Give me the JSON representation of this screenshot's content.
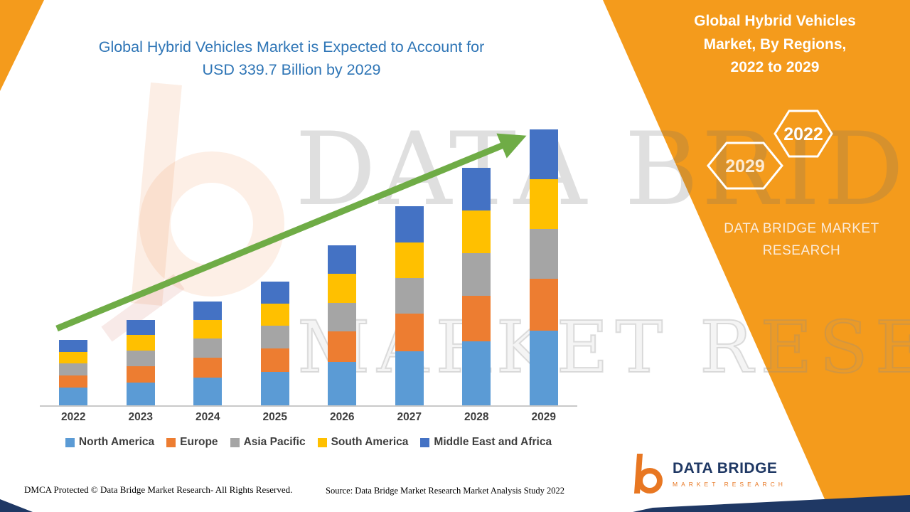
{
  "theme": {
    "panel_orange": "#F49B1C",
    "navy": "#1F3864",
    "title_blue": "#2E75B6",
    "arrow_green": "#6FAC46",
    "axis_line_gray": "#C9C9C9",
    "label_gray": "#3F3F3F",
    "logo_orange": "#E87722",
    "watermark_gray": "#9C9C9C"
  },
  "header": {
    "title_line1": "Global Hybrid Vehicles Market is Expected to Account for",
    "title_line2": "USD 339.7 Billion by 2029"
  },
  "side_panel": {
    "title_lines": [
      "Global Hybrid Vehicles",
      "Market, By Regions,",
      "2022 to 2029"
    ],
    "hexagons": [
      {
        "year": "2029"
      },
      {
        "year": "2022"
      }
    ],
    "brand_lines": [
      "DATA BRIDGE MARKET",
      "RESEARCH"
    ]
  },
  "watermark": {
    "line1": "DATA BRIDGE",
    "line2": "MARKET RESEARCH"
  },
  "logo": {
    "title": "DATA BRIDGE",
    "subtitle": "MARKET RESEARCH"
  },
  "footer": {
    "dmca": "DMCA Protected © Data Bridge Market Research- All Rights Reserved.",
    "source": "Source: Data Bridge Market Research Market Analysis Study 2022"
  },
  "chart_data": {
    "type": "bar",
    "stacked": true,
    "title": "Global Hybrid Vehicles Market, By Regions, 2022 to 2029",
    "unit": "USD Billion",
    "categories": [
      "2022",
      "2023",
      "2024",
      "2025",
      "2026",
      "2027",
      "2028",
      "2029"
    ],
    "series": [
      {
        "name": "North America",
        "color": "#5B9BD5",
        "values": [
          21.8,
          28.5,
          34.6,
          41.3,
          53.4,
          66.2,
          79.0,
          91.7
        ]
      },
      {
        "name": "Europe",
        "color": "#ED7D31",
        "values": [
          15.4,
          20.0,
          24.4,
          29.0,
          37.5,
          46.6,
          55.6,
          64.5
        ]
      },
      {
        "name": "Asia Pacific",
        "color": "#A5A5A5",
        "values": [
          14.5,
          19.0,
          23.1,
          27.5,
          35.6,
          44.1,
          52.6,
          61.1
        ]
      },
      {
        "name": "South America",
        "color": "#FFC000",
        "values": [
          14.5,
          19.0,
          23.1,
          27.5,
          35.6,
          44.1,
          52.6,
          61.1
        ]
      },
      {
        "name": "Middle East and Africa",
        "color": "#4472C4",
        "values": [
          14.5,
          19.0,
          23.1,
          27.5,
          35.6,
          44.1,
          52.6,
          61.3
        ]
      }
    ],
    "totals": [
      80.7,
      105.5,
      128.3,
      152.8,
      197.7,
      245.1,
      292.4,
      339.7
    ],
    "highlight_total_2029": 339.7,
    "values_estimated_from_pixels": true,
    "ylim": [
      0,
      368
    ],
    "xlabel": "",
    "ylabel": "",
    "grid": false,
    "legend_position": "bottom",
    "trend_arrow": true
  }
}
